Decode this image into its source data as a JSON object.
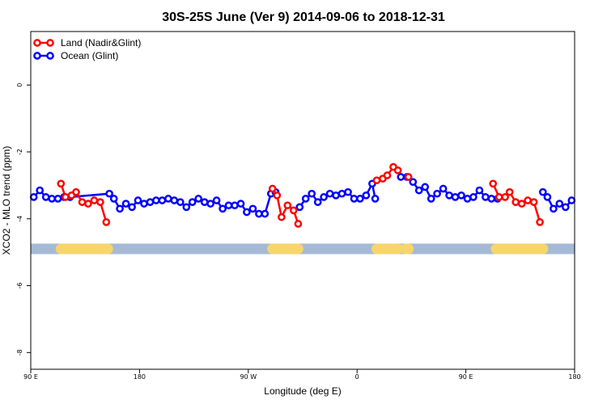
{
  "chart_data": {
    "type": "line",
    "title": "30S-25S June (Ver 9)   2014-09-06 to 2018-12-31",
    "xlabel": "Longitude (deg E)",
    "ylabel": "XCO2 - MLO trend (ppm)",
    "xlim": [
      0,
      360
    ],
    "ylim": [
      -8.5,
      1.6
    ],
    "x_ticks": [
      {
        "value": 0,
        "label": "90 E"
      },
      {
        "value": 72,
        "label": "180"
      },
      {
        "value": 144,
        "label": "90 W"
      },
      {
        "value": 216,
        "label": "0"
      },
      {
        "value": 288,
        "label": "90 E"
      },
      {
        "value": 360,
        "label": "180"
      }
    ],
    "y_ticks": [
      {
        "value": 0,
        "label": "0"
      },
      {
        "value": -2,
        "label": "-2"
      },
      {
        "value": -4,
        "label": "-4"
      },
      {
        "value": -6,
        "label": "-6"
      },
      {
        "value": -8,
        "label": "-8"
      }
    ],
    "legend": [
      {
        "name": "Land (Nadir&Glint)",
        "color": "#ff0000"
      },
      {
        "name": "Ocean (Glint)",
        "color": "#0000ff"
      }
    ],
    "land_mask": {
      "y": -4.9,
      "ocean_color": "#a5b9d5",
      "land_color": "#f7d56b",
      "land_spans": [
        [
          20,
          51
        ],
        [
          160,
          177
        ],
        [
          229,
          243
        ],
        [
          248,
          250
        ],
        [
          308,
          339
        ]
      ]
    },
    "series": [
      {
        "name": "Ocean (Glint)",
        "color": "#0000ff",
        "segments": [
          [
            [
              2,
              -3.35
            ],
            [
              6,
              -3.15
            ],
            [
              10,
              -3.35
            ],
            [
              14,
              -3.4
            ],
            [
              18,
              -3.4
            ],
            [
              22,
              -3.35
            ],
            [
              26,
              -3.35
            ],
            [
              52,
              -3.25
            ],
            [
              55,
              -3.4
            ],
            [
              59,
              -3.7
            ],
            [
              63,
              -3.55
            ],
            [
              67,
              -3.65
            ],
            [
              71,
              -3.45
            ],
            [
              75,
              -3.55
            ],
            [
              79,
              -3.5
            ],
            [
              83,
              -3.45
            ],
            [
              87,
              -3.45
            ],
            [
              91,
              -3.4
            ],
            [
              95,
              -3.45
            ],
            [
              99,
              -3.5
            ],
            [
              103,
              -3.65
            ],
            [
              107,
              -3.5
            ],
            [
              111,
              -3.4
            ],
            [
              115,
              -3.5
            ],
            [
              119,
              -3.55
            ],
            [
              123,
              -3.45
            ],
            [
              127,
              -3.7
            ],
            [
              131,
              -3.6
            ],
            [
              135,
              -3.6
            ],
            [
              139,
              -3.55
            ],
            [
              143,
              -3.8
            ],
            [
              147,
              -3.7
            ],
            [
              151,
              -3.85
            ],
            [
              155,
              -3.85
            ],
            [
              159,
              -3.25
            ],
            [
              162,
              -3.2
            ]
          ],
          [
            [
              178,
              -3.65
            ],
            [
              182,
              -3.4
            ],
            [
              186,
              -3.25
            ],
            [
              190,
              -3.5
            ],
            [
              194,
              -3.35
            ],
            [
              198,
              -3.25
            ],
            [
              202,
              -3.3
            ],
            [
              206,
              -3.25
            ],
            [
              210,
              -3.2
            ],
            [
              214,
              -3.4
            ],
            [
              218,
              -3.4
            ],
            [
              222,
              -3.3
            ],
            [
              226,
              -2.95
            ],
            [
              228,
              -3.4
            ]
          ],
          [
            [
              245,
              -2.75
            ],
            [
              249,
              -2.75
            ],
            [
              253,
              -2.9
            ],
            [
              257,
              -3.15
            ],
            [
              261,
              -3.05
            ],
            [
              265,
              -3.4
            ],
            [
              269,
              -3.25
            ],
            [
              273,
              -3.1
            ],
            [
              277,
              -3.3
            ],
            [
              281,
              -3.35
            ],
            [
              285,
              -3.3
            ],
            [
              289,
              -3.4
            ],
            [
              293,
              -3.35
            ],
            [
              297,
              -3.15
            ],
            [
              301,
              -3.35
            ],
            [
              305,
              -3.4
            ],
            [
              309,
              -3.4
            ]
          ],
          [
            [
              339,
              -3.2
            ],
            [
              342,
              -3.35
            ],
            [
              346,
              -3.7
            ],
            [
              350,
              -3.55
            ],
            [
              354,
              -3.65
            ],
            [
              358,
              -3.45
            ]
          ]
        ]
      },
      {
        "name": "Land (Nadir&Glint)",
        "color": "#ff0000",
        "segments": [
          [
            [
              20,
              -2.95
            ],
            [
              23,
              -3.35
            ],
            [
              27,
              -3.3
            ],
            [
              30,
              -3.2
            ],
            [
              34,
              -3.5
            ],
            [
              38,
              -3.55
            ],
            [
              42,
              -3.45
            ],
            [
              46,
              -3.5
            ],
            [
              50,
              -4.1
            ]
          ],
          [
            [
              160,
              -3.1
            ],
            [
              163,
              -3.3
            ],
            [
              166,
              -3.95
            ],
            [
              170,
              -3.6
            ],
            [
              174,
              -3.75
            ],
            [
              177,
              -4.15
            ]
          ],
          [
            [
              229,
              -2.85
            ],
            [
              233,
              -2.8
            ],
            [
              236,
              -2.7
            ],
            [
              240,
              -2.45
            ],
            [
              243,
              -2.55
            ]
          ],
          [
            [
              250,
              -2.75
            ]
          ],
          [
            [
              306,
              -2.95
            ],
            [
              310,
              -3.35
            ],
            [
              314,
              -3.35
            ],
            [
              317,
              -3.2
            ],
            [
              321,
              -3.5
            ],
            [
              325,
              -3.55
            ],
            [
              329,
              -3.45
            ],
            [
              333,
              -3.5
            ],
            [
              337,
              -4.1
            ]
          ]
        ]
      }
    ]
  }
}
